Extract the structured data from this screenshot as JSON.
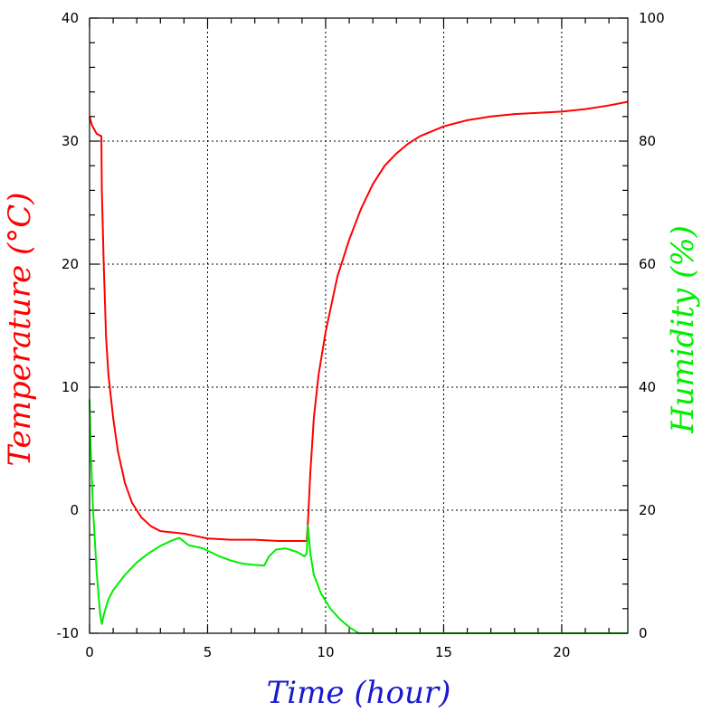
{
  "chart_data": {
    "type": "line",
    "xlabel": "Time (hour)",
    "ylabel_left": "Temperature (°C)",
    "ylabel_right": "Humidity (%)",
    "xlim": [
      0,
      22.8
    ],
    "ylim_left": [
      -10,
      40
    ],
    "ylim_right": [
      0,
      100
    ],
    "x_ticks": [
      0,
      5,
      10,
      15,
      20
    ],
    "y_left_ticks": [
      -10,
      0,
      10,
      20,
      30,
      40
    ],
    "y_right_ticks": [
      0,
      20,
      40,
      60,
      80,
      100
    ],
    "grid": true,
    "colors": {
      "temperature": "#ff0000",
      "humidity": "#00ee00",
      "xlabel": "#1a1acd",
      "ylabel_left": "#ff0000",
      "ylabel_right": "#00ee00"
    },
    "series": [
      {
        "key": "temperature",
        "axis": "left",
        "points": [
          [
            0,
            32
          ],
          [
            0.1,
            31.3
          ],
          [
            0.3,
            30.6
          ],
          [
            0.5,
            30.4
          ],
          [
            0.52,
            26
          ],
          [
            0.6,
            20
          ],
          [
            0.7,
            14
          ],
          [
            0.8,
            11
          ],
          [
            1.0,
            7.5
          ],
          [
            1.2,
            4.8
          ],
          [
            1.5,
            2.2
          ],
          [
            1.8,
            0.6
          ],
          [
            2.2,
            -0.6
          ],
          [
            2.6,
            -1.3
          ],
          [
            3.0,
            -1.7
          ],
          [
            3.5,
            -1.8
          ],
          [
            4.0,
            -1.9
          ],
          [
            4.5,
            -2.1
          ],
          [
            5.0,
            -2.3
          ],
          [
            6.0,
            -2.4
          ],
          [
            7.0,
            -2.4
          ],
          [
            8.0,
            -2.5
          ],
          [
            9.2,
            -2.5
          ],
          [
            9.25,
            -1
          ],
          [
            9.35,
            3
          ],
          [
            9.5,
            7.5
          ],
          [
            9.7,
            11
          ],
          [
            10.0,
            14.5
          ],
          [
            10.5,
            19
          ],
          [
            11.0,
            22
          ],
          [
            11.5,
            24.5
          ],
          [
            12.0,
            26.5
          ],
          [
            12.5,
            28
          ],
          [
            13.0,
            29
          ],
          [
            13.5,
            29.8
          ],
          [
            14.0,
            30.4
          ],
          [
            15.0,
            31.2
          ],
          [
            16.0,
            31.7
          ],
          [
            17.0,
            32
          ],
          [
            18.0,
            32.2
          ],
          [
            19.0,
            32.3
          ],
          [
            20.0,
            32.4
          ],
          [
            21.0,
            32.6
          ],
          [
            22.0,
            32.9
          ],
          [
            22.8,
            33.2
          ]
        ]
      },
      {
        "key": "humidity",
        "axis": "right",
        "points": [
          [
            0,
            38
          ],
          [
            0.05,
            30
          ],
          [
            0.15,
            20
          ],
          [
            0.3,
            10
          ],
          [
            0.45,
            3
          ],
          [
            0.52,
            1.5
          ],
          [
            0.6,
            3
          ],
          [
            0.8,
            5.5
          ],
          [
            1.0,
            7
          ],
          [
            1.5,
            9.5
          ],
          [
            2.0,
            11.5
          ],
          [
            2.5,
            13
          ],
          [
            3.0,
            14.2
          ],
          [
            3.5,
            15.1
          ],
          [
            3.8,
            15.5
          ],
          [
            3.9,
            15.2
          ],
          [
            4.2,
            14.3
          ],
          [
            4.8,
            13.8
          ],
          [
            5.5,
            12.5
          ],
          [
            6.0,
            11.8
          ],
          [
            6.5,
            11.3
          ],
          [
            7.0,
            11.1
          ],
          [
            7.4,
            11
          ],
          [
            7.6,
            12.5
          ],
          [
            7.9,
            13.6
          ],
          [
            8.3,
            13.8
          ],
          [
            8.8,
            13.2
          ],
          [
            9.1,
            12.5
          ],
          [
            9.2,
            13
          ],
          [
            9.25,
            17.5
          ],
          [
            9.35,
            13
          ],
          [
            9.5,
            9.5
          ],
          [
            9.8,
            6.5
          ],
          [
            10.2,
            4
          ],
          [
            10.6,
            2.3
          ],
          [
            11.0,
            1
          ],
          [
            11.4,
            0
          ],
          [
            22.8,
            0
          ]
        ]
      }
    ]
  }
}
